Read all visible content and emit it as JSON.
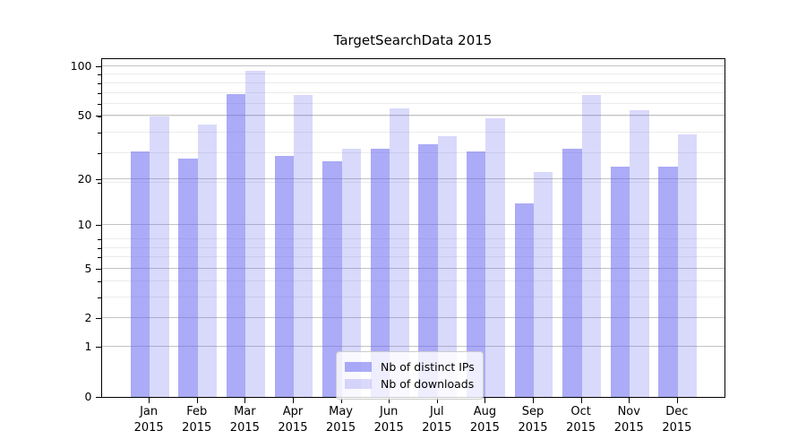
{
  "title": "TargetSearchData 2015",
  "legend": {
    "items": [
      {
        "label": "Nb of distinct IPs",
        "color": "rgba(102,102,240,0.55)"
      },
      {
        "label": "Nb of downloads",
        "color": "rgba(102,102,240,0.25)"
      }
    ]
  },
  "axes": {
    "y_ticks": [
      {
        "label": "0",
        "value": 0
      },
      {
        "label": "1",
        "value": 1
      },
      {
        "label": "2",
        "value": 2
      },
      {
        "label": "5",
        "value": 5
      },
      {
        "label": "10",
        "value": 10
      },
      {
        "label": "20",
        "value": 20
      },
      {
        "label": "50",
        "value": 50
      },
      {
        "label": "100",
        "value": 100
      }
    ],
    "y_minor_values": [
      3,
      4,
      6,
      7,
      8,
      19,
      29,
      39,
      49,
      59,
      69,
      79,
      89
    ],
    "x_tick_labels": [
      "Jan\n2015",
      "Feb\n2015",
      "Mar\n2015",
      "Apr\n2015",
      "May\n2015",
      "Jun\n2015",
      "Jul\n2015",
      "Aug\n2015",
      "Sep\n2015",
      "Oct\n2015",
      "Nov\n2015",
      "Dec\n2015"
    ]
  },
  "chart_data": {
    "type": "bar",
    "title": "TargetSearchData 2015",
    "categories": [
      "Jan 2015",
      "Feb 2015",
      "Mar 2015",
      "Apr 2015",
      "May 2015",
      "Jun 2015",
      "Jul 2015",
      "Aug 2015",
      "Sep 2015",
      "Oct 2015",
      "Nov 2015",
      "Dec 2015"
    ],
    "series": [
      {
        "name": "Nb of distinct IPs",
        "values": [
          30,
          27,
          68,
          28,
          26,
          31,
          33,
          30,
          14,
          31,
          24,
          24
        ]
      },
      {
        "name": "Nb of downloads",
        "values": [
          49,
          44,
          94,
          67,
          31,
          55,
          37,
          48,
          22,
          67,
          54,
          38
        ]
      }
    ],
    "xlabel": "",
    "ylabel": "",
    "yscale": "log10(1+y)",
    "ylim": [
      0,
      111.7
    ],
    "grid": "both",
    "legend_position": "lower center"
  },
  "colors": {
    "bar_series_0": "rgba(102,102,240,0.55)",
    "bar_series_1": "rgba(102,102,240,0.25)",
    "grid_major": "#c3c3c3",
    "grid_minor": "#ebebeb",
    "spine": "#000000",
    "legend_border": "#cccccc",
    "legend_bg": "rgba(255,255,255,0.8)",
    "text": "#000000"
  }
}
